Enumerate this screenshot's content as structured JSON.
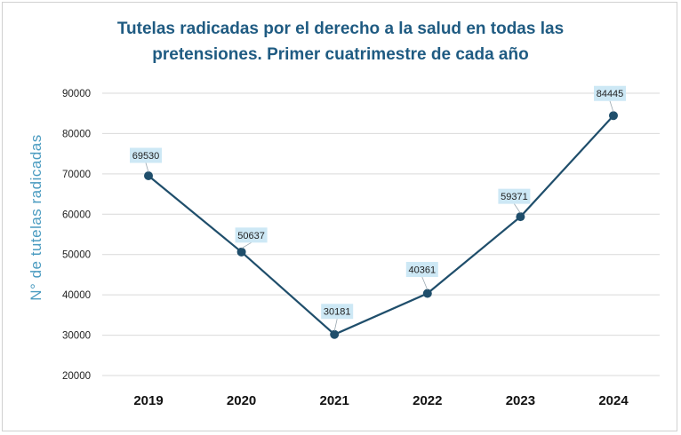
{
  "chart_data": {
    "type": "line",
    "title_line1": "Tutelas radicadas por el derecho a la salud en todas las",
    "title_line2": "pretensiones.  Primer cuatrimestre de cada año",
    "ylabel": "N° de tutelas radicadas",
    "xlabel": "",
    "categories": [
      "2019",
      "2020",
      "2021",
      "2022",
      "2023",
      "2024"
    ],
    "values": [
      69530,
      50637,
      30181,
      40361,
      59371,
      84445
    ],
    "data_labels": [
      "69530",
      "50637",
      "30181",
      "40361",
      "59371",
      "84445"
    ],
    "ylim": [
      20000,
      90000
    ],
    "yticks": [
      20000,
      30000,
      40000,
      50000,
      60000,
      70000,
      80000,
      90000
    ],
    "ytick_labels": [
      "20000",
      "30000",
      "40000",
      "50000",
      "60000",
      "70000",
      "80000",
      "90000"
    ],
    "grid": true,
    "line_color": "#1f4e6b",
    "label_bg_color": "#cde8f5"
  }
}
